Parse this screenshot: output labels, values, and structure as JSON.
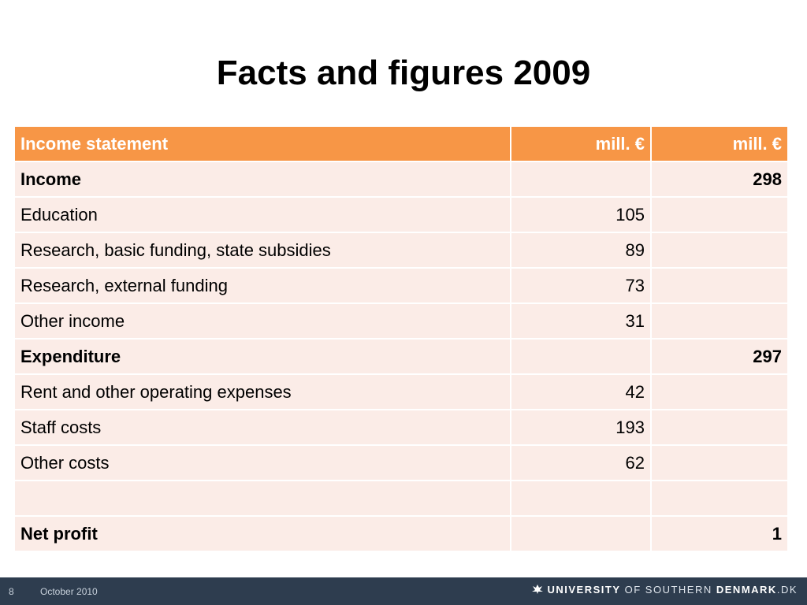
{
  "slide": {
    "title": "Facts and figures 2009"
  },
  "table": {
    "headers": [
      "Income statement",
      "mill. €",
      "mill. €"
    ],
    "rows": [
      {
        "label": "Income",
        "sub": "",
        "total": "298"
      },
      {
        "label": "Education",
        "sub": "105",
        "total": ""
      },
      {
        "label": "Research, basic funding, state subsidies",
        "sub": "89",
        "total": ""
      },
      {
        "label": "Research, external funding",
        "sub": "73",
        "total": ""
      },
      {
        "label": "Other income",
        "sub": "31",
        "total": ""
      },
      {
        "label": "Expenditure",
        "sub": "",
        "total": "297"
      },
      {
        "label": "Rent and other operating expenses",
        "sub": "42",
        "total": ""
      },
      {
        "label": "Staff costs",
        "sub": "193",
        "total": ""
      },
      {
        "label": "Other costs",
        "sub": "62",
        "total": ""
      },
      {
        "label": "",
        "sub": "",
        "total": ""
      },
      {
        "label": "Net profit",
        "sub": "",
        "total": "1"
      }
    ]
  },
  "footer": {
    "page_number": "8",
    "date": "October 2010",
    "brand_part1": "UNIVERSITY",
    "brand_part2": "OF SOUTHERN",
    "brand_part3": "DENMARK",
    "brand_part4": ".DK"
  },
  "colors": {
    "header_bg": "#f79646",
    "row_bg": "#fbece7",
    "footer_bg": "#2e3d4f"
  }
}
